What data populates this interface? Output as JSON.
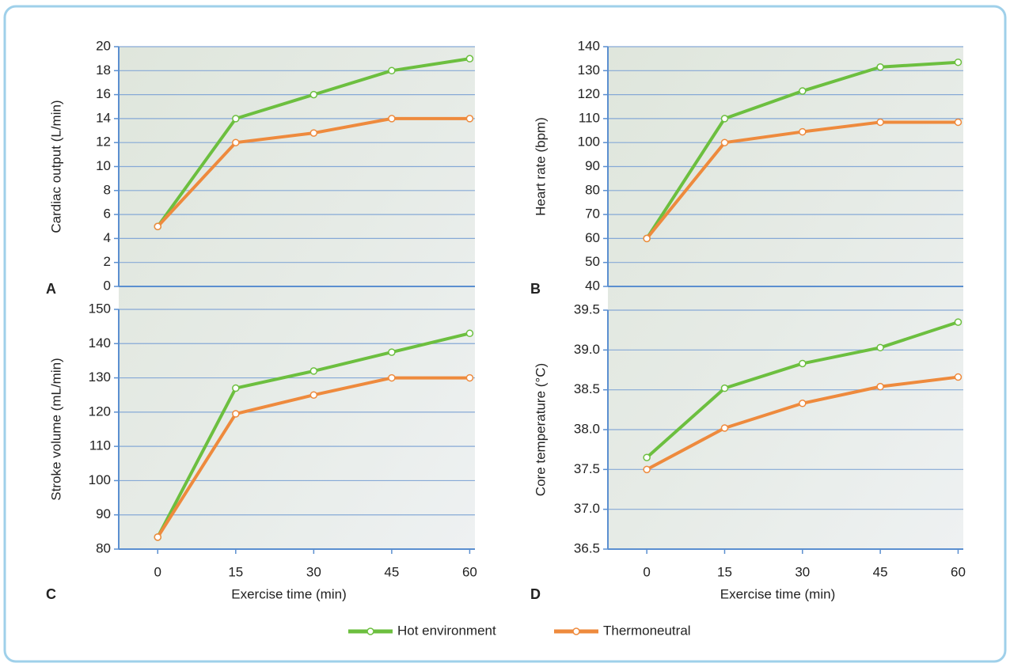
{
  "legend": {
    "series": [
      {
        "name": "Hot environment",
        "color": "#6cbf3f"
      },
      {
        "name": "Thermoneutral",
        "color": "#ee8a3d"
      }
    ]
  },
  "chart_data": [
    {
      "type": "line",
      "panel": "A",
      "y_label": "Cardiac output (L/min)",
      "x": [
        0,
        15,
        30,
        45,
        60
      ],
      "xlim": [
        -7.5,
        61
      ],
      "ylim": [
        0,
        20
      ],
      "yticks": [
        0,
        2,
        4,
        6,
        8,
        10,
        12,
        14,
        16,
        18,
        20
      ],
      "grid": true,
      "series": [
        {
          "values": [
            5,
            14,
            16,
            18,
            19
          ]
        },
        {
          "values": [
            5,
            12,
            12.8,
            14,
            14
          ]
        }
      ]
    },
    {
      "type": "line",
      "panel": "B",
      "y_label": "Heart rate (bpm)",
      "x": [
        0,
        15,
        30,
        45,
        60
      ],
      "xlim": [
        -7.5,
        61
      ],
      "ylim": [
        40,
        140
      ],
      "yticks": [
        40,
        50,
        60,
        70,
        80,
        90,
        100,
        110,
        120,
        130,
        140
      ],
      "grid": true,
      "series": [
        {
          "values": [
            60,
            110,
            121.5,
            131.5,
            133.5
          ]
        },
        {
          "values": [
            60,
            100,
            104.5,
            108.5,
            108.5
          ]
        }
      ]
    },
    {
      "type": "line",
      "panel": "C",
      "y_label": "Stroke volume (mL/min)",
      "x_label": "Exercise time (min)",
      "x": [
        0,
        15,
        30,
        45,
        60
      ],
      "xlim": [
        -7.5,
        61
      ],
      "xticks": [
        0,
        15,
        30,
        45,
        60
      ],
      "ylim": [
        80,
        150
      ],
      "yticks": [
        80,
        90,
        100,
        110,
        120,
        130,
        140,
        150
      ],
      "grid": true,
      "series": [
        {
          "values": [
            83.5,
            127,
            132,
            137.5,
            143
          ]
        },
        {
          "values": [
            83.5,
            119.5,
            125,
            130,
            130
          ]
        }
      ]
    },
    {
      "type": "line",
      "panel": "D",
      "y_label": "Core temperature (°C)",
      "x_label": "Exercise time (min)",
      "x": [
        0,
        15,
        30,
        45,
        60
      ],
      "xlim": [
        -7.5,
        61
      ],
      "xticks": [
        0,
        15,
        30,
        45,
        60
      ],
      "ylim": [
        36.5,
        39.5
      ],
      "yticks": [
        36.5,
        {
          "value": 37,
          "label": "37.0"
        },
        37.5,
        {
          "value": 38,
          "label": "38.0"
        },
        38.5,
        {
          "value": 39,
          "label": "39.0"
        },
        39.5
      ],
      "grid": true,
      "series": [
        {
          "values": [
            37.65,
            38.52,
            38.83,
            39.03,
            39.35
          ]
        },
        {
          "values": [
            37.5,
            38.02,
            38.33,
            38.54,
            38.66
          ]
        }
      ]
    }
  ]
}
